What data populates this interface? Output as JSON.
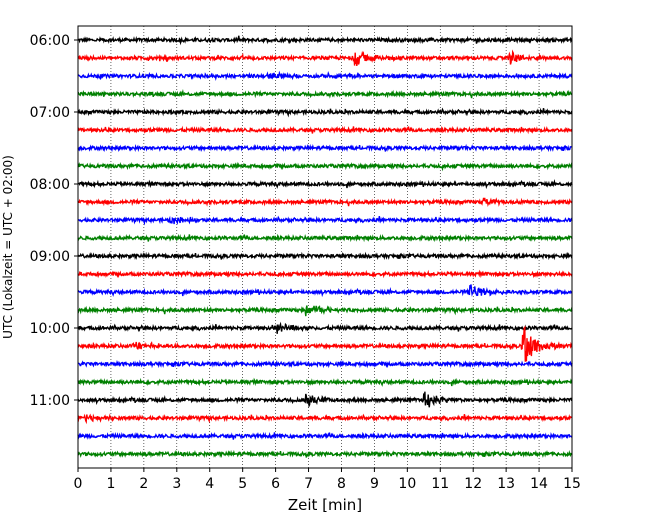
{
  "chart_data": {
    "type": "line",
    "title": "",
    "xlabel": "Zeit  [min]",
    "ylabel": "UTC (Lokalzeit = UTC + 02:00)",
    "xlim": [
      0,
      15
    ],
    "x_ticks": [
      0,
      1,
      2,
      3,
      4,
      5,
      6,
      7,
      8,
      9,
      10,
      11,
      12,
      13,
      14,
      15
    ],
    "x_grid": "dotted vertical gridlines at each minute",
    "traces": [
      {
        "row": 0,
        "start": "06:00",
        "color": "#000000"
      },
      {
        "row": 1,
        "start": "06:15",
        "color": "#ff0000"
      },
      {
        "row": 2,
        "start": "06:30",
        "color": "#0000ff"
      },
      {
        "row": 3,
        "start": "06:45",
        "color": "#008000"
      },
      {
        "row": 4,
        "start": "07:00",
        "color": "#000000"
      },
      {
        "row": 5,
        "start": "07:15",
        "color": "#ff0000"
      },
      {
        "row": 6,
        "start": "07:30",
        "color": "#0000ff"
      },
      {
        "row": 7,
        "start": "07:45",
        "color": "#008000"
      },
      {
        "row": 8,
        "start": "08:00",
        "color": "#000000"
      },
      {
        "row": 9,
        "start": "08:15",
        "color": "#ff0000"
      },
      {
        "row": 10,
        "start": "08:30",
        "color": "#0000ff"
      },
      {
        "row": 11,
        "start": "08:45",
        "color": "#008000"
      },
      {
        "row": 12,
        "start": "09:00",
        "color": "#000000"
      },
      {
        "row": 13,
        "start": "09:15",
        "color": "#ff0000"
      },
      {
        "row": 14,
        "start": "09:30",
        "color": "#0000ff"
      },
      {
        "row": 15,
        "start": "09:45",
        "color": "#008000"
      },
      {
        "row": 16,
        "start": "10:00",
        "color": "#000000"
      },
      {
        "row": 17,
        "start": "10:15",
        "color": "#ff0000"
      },
      {
        "row": 18,
        "start": "10:30",
        "color": "#0000ff"
      },
      {
        "row": 19,
        "start": "10:45",
        "color": "#008000"
      },
      {
        "row": 20,
        "start": "11:00",
        "color": "#000000"
      },
      {
        "row": 21,
        "start": "11:15",
        "color": "#ff0000"
      },
      {
        "row": 22,
        "start": "11:30",
        "color": "#0000ff"
      },
      {
        "row": 23,
        "start": "11:45",
        "color": "#008000"
      }
    ],
    "y_tick_labels": [
      "06:00",
      "07:00",
      "08:00",
      "09:00",
      "10:00",
      "11:00"
    ],
    "y_tick_rows": [
      0,
      4,
      8,
      12,
      16,
      20
    ],
    "events": [
      {
        "row": 1,
        "t": 8.4,
        "amp": 0.5
      },
      {
        "row": 1,
        "t": 13.1,
        "amp": 0.35
      },
      {
        "row": 2,
        "t": 5.8,
        "amp": 0.25
      },
      {
        "row": 10,
        "t": 2.8,
        "amp": 0.2
      },
      {
        "row": 9,
        "t": 12.3,
        "amp": 0.2
      },
      {
        "row": 14,
        "t": 11.9,
        "amp": 0.45
      },
      {
        "row": 15,
        "t": 6.9,
        "amp": 0.35
      },
      {
        "row": 16,
        "t": 6.0,
        "amp": 0.35
      },
      {
        "row": 17,
        "t": 13.5,
        "amp": 1.3
      },
      {
        "row": 17,
        "t": 1.65,
        "amp": 0.2
      },
      {
        "row": 20,
        "t": 10.5,
        "amp": 0.5
      },
      {
        "row": 20,
        "t": 6.9,
        "amp": 0.35
      },
      {
        "row": 21,
        "t": 0.2,
        "amp": 0.2
      }
    ]
  }
}
